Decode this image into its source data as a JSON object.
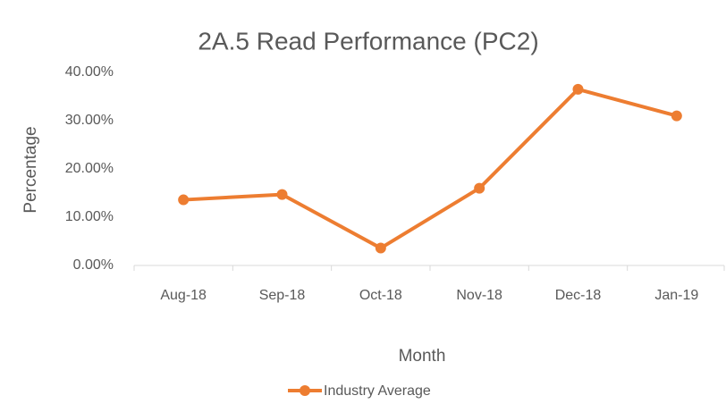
{
  "chart_data": {
    "type": "line",
    "title": "2A.5 Read Performance (PC2)",
    "x_label": "Month",
    "y_label": "Percentage",
    "categories": [
      "Aug-18",
      "Sep-18",
      "Oct-18",
      "Nov-18",
      "Dec-18",
      "Jan-19"
    ],
    "series": [
      {
        "name": "Industry Average",
        "color": "#ed7d31",
        "values": [
          13.6,
          14.7,
          3.6,
          16.0,
          36.5,
          31.0
        ]
      }
    ],
    "ylim": [
      0,
      40
    ],
    "yticks": [
      {
        "value": 0,
        "label": "0.00%"
      },
      {
        "value": 10,
        "label": "10.00%"
      },
      {
        "value": 20,
        "label": "20.00%"
      },
      {
        "value": 30,
        "label": "30.00%"
      },
      {
        "value": 40,
        "label": "40.00%"
      }
    ],
    "grid": false,
    "legend": "bottom"
  }
}
